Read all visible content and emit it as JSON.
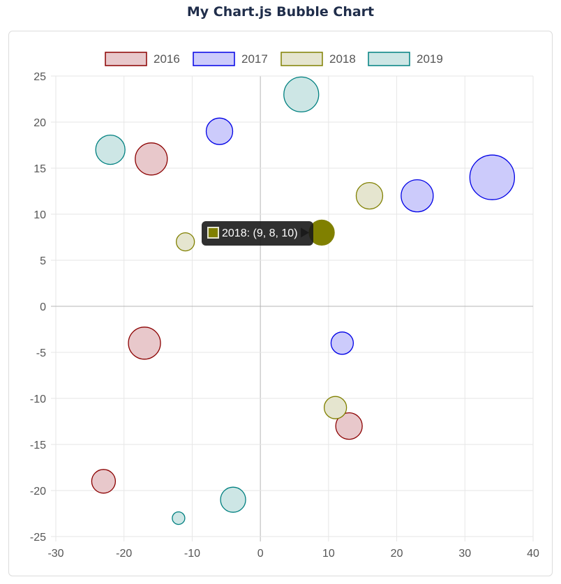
{
  "page": {
    "title": "My Chart.js Bubble Chart"
  },
  "chart_data": {
    "type": "scatter",
    "subtype": "bubble",
    "xlim": [
      -30,
      40
    ],
    "ylim": [
      -25,
      25
    ],
    "xticks": [
      -30,
      -20,
      -10,
      0,
      10,
      20,
      30,
      40
    ],
    "yticks": [
      25,
      20,
      15,
      10,
      5,
      0,
      -5,
      -10,
      -15,
      -20,
      -25
    ],
    "grid": true,
    "legend_position": "top",
    "series": [
      {
        "name": "2016",
        "fill": "#e8c8cb",
        "stroke": "#8b0000",
        "points": [
          {
            "x": -16,
            "y": 16,
            "r": 23
          },
          {
            "x": -17,
            "y": -4,
            "r": 23
          },
          {
            "x": -23,
            "y": -19,
            "r": 17
          },
          {
            "x": 13,
            "y": -13,
            "r": 19
          }
        ]
      },
      {
        "name": "2017",
        "fill": "#cccbfb",
        "stroke": "#0000e6",
        "points": [
          {
            "x": -6,
            "y": 19,
            "r": 19
          },
          {
            "x": 23,
            "y": 12,
            "r": 23
          },
          {
            "x": 34,
            "y": 14,
            "r": 32
          },
          {
            "x": 12,
            "y": -4,
            "r": 16
          }
        ]
      },
      {
        "name": "2018",
        "fill": "#e5e5cf",
        "stroke": "#808000",
        "points": [
          {
            "x": 16,
            "y": 12,
            "r": 19
          },
          {
            "x": -11,
            "y": 7,
            "r": 13
          },
          {
            "x": 11,
            "y": -11,
            "r": 16
          }
        ]
      },
      {
        "name": "2019",
        "fill": "#cde6e5",
        "stroke": "#008080",
        "points": [
          {
            "x": 6,
            "y": 23,
            "r": 25
          },
          {
            "x": -22,
            "y": 17,
            "r": 21
          },
          {
            "x": -4,
            "y": -21,
            "r": 18
          },
          {
            "x": -12,
            "y": -23,
            "r": 9
          }
        ]
      }
    ],
    "highlight": {
      "series": "2018",
      "x": 9,
      "y": 8,
      "r": 10,
      "color": "#808000"
    },
    "tooltip": {
      "text": "2018: (9, 8, 10)",
      "swatch_fill": "#808000",
      "swatch_stroke": "#e5e5cf"
    }
  }
}
